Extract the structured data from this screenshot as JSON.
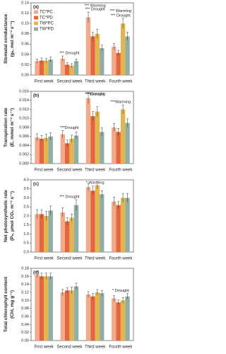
{
  "chart_data": [
    {
      "type": "bar",
      "panel_label": "(a)",
      "ylabel": [
        "Stomatal conductance",
        "(gₛ, mol m⁻² s⁻¹)"
      ],
      "categories": [
        "First week",
        "Second week",
        "Third week",
        "Fourth week"
      ],
      "ylim": [
        0,
        0.14
      ],
      "yticks": [
        {
          "value": 0,
          "label": "0.00"
        },
        {
          "value": 0.02,
          "label": "0.02"
        },
        {
          "value": 0.04,
          "label": "0.04"
        },
        {
          "value": 0.06,
          "label": "0.06"
        },
        {
          "value": 0.08,
          "label": "0.08"
        },
        {
          "value": 0.1,
          "label": "0.10"
        },
        {
          "value": 0.12,
          "label": "0.12"
        },
        {
          "value": 0.14,
          "label": "0.14"
        }
      ],
      "legend": "upper left",
      "series": [
        {
          "name": "TC*PC",
          "color": "#f2a98a",
          "values": [
            0.027,
            0.032,
            0.112,
            0.055
          ],
          "errors": [
            0.004,
            0.005,
            0.01,
            0.006
          ]
        },
        {
          "name": "TC*PD",
          "color": "#e2673f",
          "values": [
            0.028,
            0.02,
            0.075,
            0.043
          ],
          "errors": [
            0.005,
            0.004,
            0.008,
            0.005
          ]
        },
        {
          "name": "TW*PC",
          "color": "#e3b54c",
          "values": [
            0.028,
            0.018,
            0.08,
            0.1
          ],
          "errors": [
            0.004,
            0.004,
            0.009,
            0.01
          ]
        },
        {
          "name": "TW*PD",
          "color": "#8faea6",
          "values": [
            0.03,
            0.027,
            0.052,
            0.075
          ],
          "errors": [
            0.005,
            0.004,
            0.006,
            0.008
          ]
        }
      ],
      "annotations": [
        [],
        [
          "*** Drought"
        ],
        [
          "*** Warming",
          "*** Drought"
        ],
        [
          "*** Warming",
          "*** Drought"
        ]
      ]
    },
    {
      "type": "bar",
      "panel_label": "(b)",
      "ylabel": [
        "Transpiration rate",
        "(E, mmol m⁻² s⁻¹)"
      ],
      "categories": [
        "First week",
        "Second week",
        "Third week",
        "Fourth week"
      ],
      "ylim": [
        0,
        0.016
      ],
      "yticks": [
        {
          "value": 0,
          "label": "0.000"
        },
        {
          "value": 0.002,
          "label": "0.002"
        },
        {
          "value": 0.004,
          "label": "0.004"
        },
        {
          "value": 0.006,
          "label": "0.006"
        },
        {
          "value": 0.008,
          "label": "0.008"
        },
        {
          "value": 0.01,
          "label": "0.010"
        },
        {
          "value": 0.012,
          "label": "0.012"
        },
        {
          "value": 0.014,
          "label": "0.014"
        },
        {
          "value": 0.016,
          "label": "0.016"
        }
      ],
      "series": [
        {
          "color": "#f2a98a",
          "values": [
            0.0058,
            0.0065,
            0.0145,
            0.008
          ],
          "errors": [
            0.0008,
            0.0008,
            0.0012,
            0.0009
          ]
        },
        {
          "color": "#e2673f",
          "values": [
            0.0055,
            0.0045,
            0.0105,
            0.007
          ],
          "errors": [
            0.0007,
            0.0007,
            0.001,
            0.0008
          ]
        },
        {
          "color": "#e3b54c",
          "values": [
            0.0057,
            0.0055,
            0.0115,
            0.012
          ],
          "errors": [
            0.0008,
            0.0008,
            0.0011,
            0.001
          ]
        },
        {
          "color": "#8faea6",
          "values": [
            0.006,
            0.0062,
            0.007,
            0.009
          ],
          "errors": [
            0.0008,
            0.0008,
            0.0009,
            0.0009
          ]
        }
      ],
      "annotations": [
        [],
        [
          "***Drought"
        ],
        [
          "***Warming",
          "***Drought"
        ],
        [
          "***Warming"
        ]
      ]
    },
    {
      "type": "bar",
      "panel_label": "(c)",
      "ylabel": [
        "Net photosynthetic rate",
        "(Pₙ, μmol CO₂ m⁻² s⁻¹)"
      ],
      "categories": [
        "First week",
        "Second week",
        "Third week",
        "Fourth week"
      ],
      "ylim": [
        0,
        4
      ],
      "yticks": [
        {
          "value": 0,
          "label": "0.0"
        },
        {
          "value": 0.5,
          "label": "0.5"
        },
        {
          "value": 1,
          "label": "1.0"
        },
        {
          "value": 1.5,
          "label": "1.5"
        },
        {
          "value": 2,
          "label": "2.0"
        },
        {
          "value": 2.5,
          "label": "2.5"
        },
        {
          "value": 3,
          "label": "3.0"
        },
        {
          "value": 3.5,
          "label": "3.5"
        },
        {
          "value": 4,
          "label": "4.0"
        }
      ],
      "series": [
        {
          "color": "#f2a98a",
          "values": [
            2.1,
            2.2,
            3.6,
            2.8
          ],
          "errors": [
            0.25,
            0.25,
            0.2,
            0.25
          ]
        },
        {
          "color": "#e2673f",
          "values": [
            2.1,
            1.7,
            3.4,
            2.6
          ],
          "errors": [
            0.25,
            0.2,
            0.25,
            0.2
          ]
        },
        {
          "color": "#e3b54c",
          "values": [
            2,
            1.9,
            3.7,
            3
          ],
          "errors": [
            0.25,
            0.2,
            0.2,
            0.25
          ]
        },
        {
          "color": "#8faea6",
          "values": [
            2.3,
            2.6,
            3.2,
            3
          ],
          "errors": [
            0.25,
            0.3,
            0.2,
            0.25
          ]
        }
      ],
      "annotations": [
        [],
        [
          "*** Drought"
        ],
        [
          "* Warming"
        ],
        []
      ]
    },
    {
      "type": "bar",
      "panel_label": "(d)",
      "ylabel": [
        "Total chlorophyll content",
        "(Chl, mg g⁻¹)"
      ],
      "categories": [
        "First week",
        "Second week",
        "Third week",
        "Fourth week"
      ],
      "ylim": [
        0,
        0.18
      ],
      "yticks": [
        {
          "value": 0,
          "label": "0.00"
        },
        {
          "value": 0.02,
          "label": "0.02"
        },
        {
          "value": 0.04,
          "label": "0.04"
        },
        {
          "value": 0.06,
          "label": "0.06"
        },
        {
          "value": 0.08,
          "label": "0.08"
        },
        {
          "value": 0.1,
          "label": "0.10"
        },
        {
          "value": 0.12,
          "label": "0.12"
        },
        {
          "value": 0.14,
          "label": "0.14"
        },
        {
          "value": 0.16,
          "label": "0.16"
        },
        {
          "value": 0.18,
          "label": "0.18"
        }
      ],
      "series": [
        {
          "color": "#f2a98a",
          "values": [
            0.165,
            0.12,
            0.115,
            0.105
          ],
          "errors": [
            0.008,
            0.008,
            0.007,
            0.007
          ]
        },
        {
          "color": "#e2673f",
          "values": [
            0.16,
            0.125,
            0.11,
            0.095
          ],
          "errors": [
            0.008,
            0.007,
            0.007,
            0.006
          ]
        },
        {
          "color": "#e3b54c",
          "values": [
            0.16,
            0.125,
            0.12,
            0.1
          ],
          "errors": [
            0.008,
            0.008,
            0.007,
            0.007
          ]
        },
        {
          "color": "#8faea6",
          "values": [
            0.16,
            0.135,
            0.118,
            0.11
          ],
          "errors": [
            0.008,
            0.008,
            0.007,
            0.007
          ]
        }
      ],
      "annotations": [
        [],
        [],
        [],
        [
          "* Drought"
        ]
      ]
    }
  ]
}
